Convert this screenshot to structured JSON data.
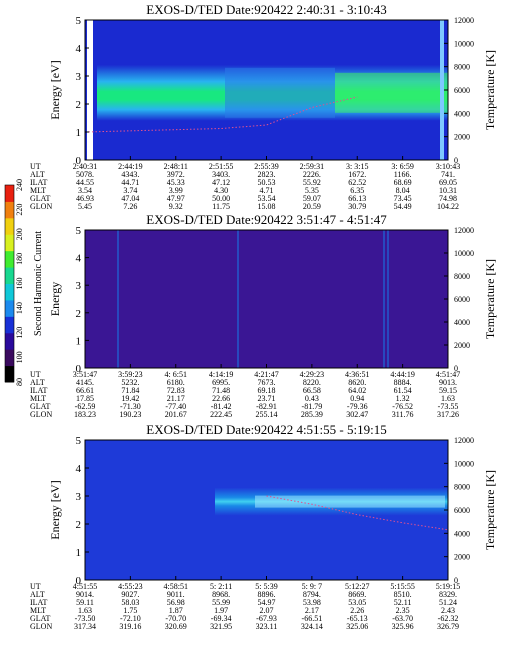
{
  "figure": {
    "colorbar": {
      "label": "Second Harmonic Current",
      "ticks": [
        "80",
        "100",
        "120",
        "140",
        "160",
        "180",
        "200",
        "220",
        "240"
      ],
      "colors": [
        "#000000",
        "#3a0a5e",
        "#2a0a9c",
        "#1830d6",
        "#1c8aee",
        "#10c8d8",
        "#18d890",
        "#40ec30",
        "#d8f020",
        "#f0d010",
        "#f08010",
        "#e82010"
      ]
    },
    "panel_bg": {
      "panel_1": "#1a2ad0",
      "panel_2": "#3a1694",
      "panel_3": "#1e3ad8"
    },
    "band_color": "#18e880",
    "band_edge_color": "#28b4f0",
    "temp_line_color": "#e05090",
    "coord_labels": [
      "UT",
      "ALT",
      "ILAT",
      "MLT",
      "GLAT",
      "GLON"
    ]
  },
  "chart_data": [
    {
      "type": "heatmap",
      "title": "EXOS-D/TED   Date:920422  2:40:31 - 3:10:43",
      "ylabel": "Energy [eV]",
      "y2label": "Temperature [K]",
      "ylim": [
        0,
        5
      ],
      "y2lim": [
        0,
        12000
      ],
      "yticks": [
        "0",
        "1",
        "2",
        "3",
        "4",
        "5"
      ],
      "y2ticks": [
        "0",
        "2000",
        "4000",
        "6000",
        "8000",
        "10000",
        "12000"
      ],
      "band_energy_center_ev": 2.4,
      "temperature_k": [
        {
          "x": "2:40:31",
          "y": 2400
        },
        {
          "x": "2:51:55",
          "y": 2700
        },
        {
          "x": "2:55:39",
          "y": 3000
        },
        {
          "x": "2:59:31",
          "y": 4500
        },
        {
          "x": "3: 3:15",
          "y": 5400
        }
      ],
      "axis": {
        "UT": [
          "2:40:31",
          "2:44:19",
          "2:48:11",
          "2:51:55",
          "2:55:39",
          "2:59:31",
          "3: 3:15",
          "3: 6:59",
          "3:10:43"
        ],
        "ALT": [
          "5078.",
          "4343.",
          "3972.",
          "3403.",
          "2823.",
          "2226.",
          "1672.",
          "1166.",
          "741."
        ],
        "ILAT": [
          "44.55",
          "44.71",
          "45.33",
          "47.12",
          "50.53",
          "55.92",
          "62.52",
          "68.69",
          "69.05"
        ],
        "MLT": [
          "3.54",
          "3.74",
          "3.99",
          "4.30",
          "4.71",
          "5.35",
          "6.35",
          "8.04",
          "10.31"
        ],
        "GLAT": [
          "46.93",
          "47.04",
          "47.97",
          "50.00",
          "53.54",
          "59.07",
          "66.13",
          "73.45",
          "74.98"
        ],
        "GLON": [
          "5.45",
          "7.26",
          "9.32",
          "11.75",
          "15.08",
          "20.59",
          "30.79",
          "54.49",
          "104.22"
        ]
      }
    },
    {
      "type": "heatmap",
      "title": "EXOS-D/TED   Date:920422  3:51:47 - 4:51:47",
      "ylabel": "Energy",
      "y2label": "Temperature [K]",
      "ylim": [
        0,
        5
      ],
      "y2lim": [
        0,
        12000
      ],
      "yticks": [
        "0",
        "1",
        "2",
        "3",
        "4",
        "5"
      ],
      "y2ticks": [
        "0",
        "2000",
        "4000",
        "6000",
        "8000",
        "10000",
        "12000"
      ],
      "axis": {
        "UT": [
          "3:51:47",
          "3:59:23",
          "4: 6:51",
          "4:14:19",
          "4:21:47",
          "4:29:23",
          "4:36:51",
          "4:44:19",
          "4:51:47"
        ],
        "ALT": [
          "4145.",
          "5232.",
          "6180.",
          "6995.",
          "7673.",
          "8220.",
          "8620.",
          "8884.",
          "9013."
        ],
        "ILAT": [
          "66.61",
          "71.84",
          "72.83",
          "71.48",
          "69.18",
          "66.58",
          "64.02",
          "61.54",
          "59.15"
        ],
        "MLT": [
          "17.85",
          "19.42",
          "21.17",
          "22.66",
          "23.71",
          "0.43",
          "0.94",
          "1.32",
          "1.63"
        ],
        "GLAT": [
          "-62.59",
          "-71.30",
          "-77.40",
          "-81.42",
          "-82.91",
          "-81.79",
          "-79.36",
          "-76.52",
          "-73.55"
        ],
        "GLON": [
          "183.23",
          "190.23",
          "201.67",
          "222.45",
          "255.14",
          "285.39",
          "302.47",
          "311.76",
          "317.26"
        ]
      }
    },
    {
      "type": "heatmap",
      "title": "EXOS-D/TED   Date:920422  4:51:55 - 5:19:15",
      "ylabel": "Energy [eV]",
      "y2label": "Temperature [K]",
      "ylim": [
        0,
        5
      ],
      "y2lim": [
        0,
        12000
      ],
      "yticks": [
        "0",
        "1",
        "2",
        "3",
        "4",
        "5"
      ],
      "y2ticks": [
        "0",
        "2000",
        "4000",
        "6000",
        "8000",
        "10000",
        "12000"
      ],
      "band_energy_center_ev": 2.8,
      "temperature_k": [
        {
          "x": "5: 5:39",
          "y": 7200
        },
        {
          "x": "5: 9: 7",
          "y": 6500
        },
        {
          "x": "5:12:27",
          "y": 5600
        },
        {
          "x": "5:15:55",
          "y": 4900
        },
        {
          "x": "5:19:15",
          "y": 4300
        }
      ],
      "axis": {
        "UT": [
          "4:51:55",
          "4:55:23",
          "4:58:51",
          "5: 2:11",
          "5: 5:39",
          "5: 9: 7",
          "5:12:27",
          "5:15:55",
          "5:19:15"
        ],
        "ALT": [
          "9014.",
          "9027.",
          "9011.",
          "8968.",
          "8896.",
          "8794.",
          "8669.",
          "8510.",
          "8329."
        ],
        "ILAT": [
          "59.11",
          "58.03",
          "56.98",
          "55.99",
          "54.97",
          "53.98",
          "53.05",
          "52.11",
          "51.24"
        ],
        "MLT": [
          "1.63",
          "1.75",
          "1.87",
          "1.97",
          "2.07",
          "2.17",
          "2.26",
          "2.35",
          "2.43"
        ],
        "GLAT": [
          "-73.50",
          "-72.10",
          "-70.70",
          "-69.34",
          "-67.93",
          "-66.51",
          "-65.13",
          "-63.70",
          "-62.32"
        ],
        "GLON": [
          "317.34",
          "319.16",
          "320.69",
          "321.95",
          "323.11",
          "324.14",
          "325.06",
          "325.96",
          "326.79"
        ]
      }
    }
  ]
}
